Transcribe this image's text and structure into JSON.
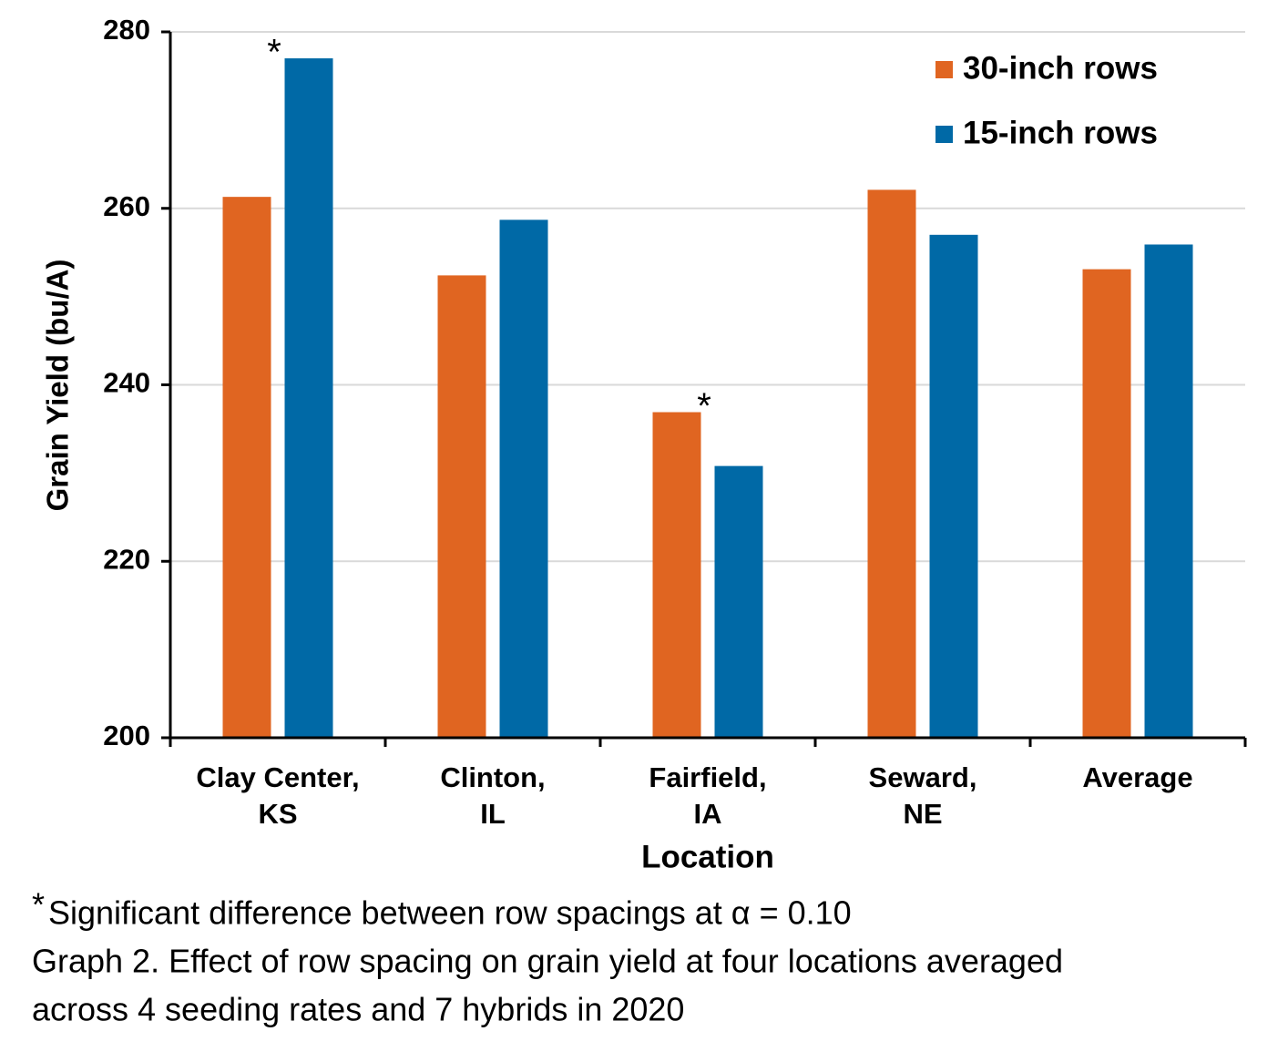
{
  "chart_data": {
    "type": "bar",
    "categories": [
      [
        "Clay Center,",
        "KS"
      ],
      [
        "Clinton,",
        "IL"
      ],
      [
        "Fairfield,",
        "IA"
      ],
      [
        "Seward,",
        "NE"
      ],
      [
        "Average"
      ]
    ],
    "series": [
      {
        "name": "30-inch rows",
        "color": "#e06521",
        "values": [
          261.3,
          252.4,
          236.9,
          262.1,
          253.1
        ]
      },
      {
        "name": "15-inch rows",
        "color": "#0069a6",
        "values": [
          277.0,
          258.7,
          230.8,
          257.0,
          255.9
        ]
      }
    ],
    "significant": [
      true,
      false,
      true,
      false,
      false
    ],
    "significance_marker": "*",
    "xlabel": "Location",
    "ylabel": "Grain Yield (bu/A)",
    "ylim": [
      200,
      280
    ],
    "yticks": [
      200,
      220,
      240,
      260,
      280
    ],
    "grid": true,
    "legend": "upper right",
    "footnote": "Significant difference between row spacings at α = 0.10",
    "caption": [
      "Graph 2. Effect of row spacing on grain yield at four locations averaged",
      "across 4 seeding rates and 7 hybrids in 2020"
    ]
  }
}
